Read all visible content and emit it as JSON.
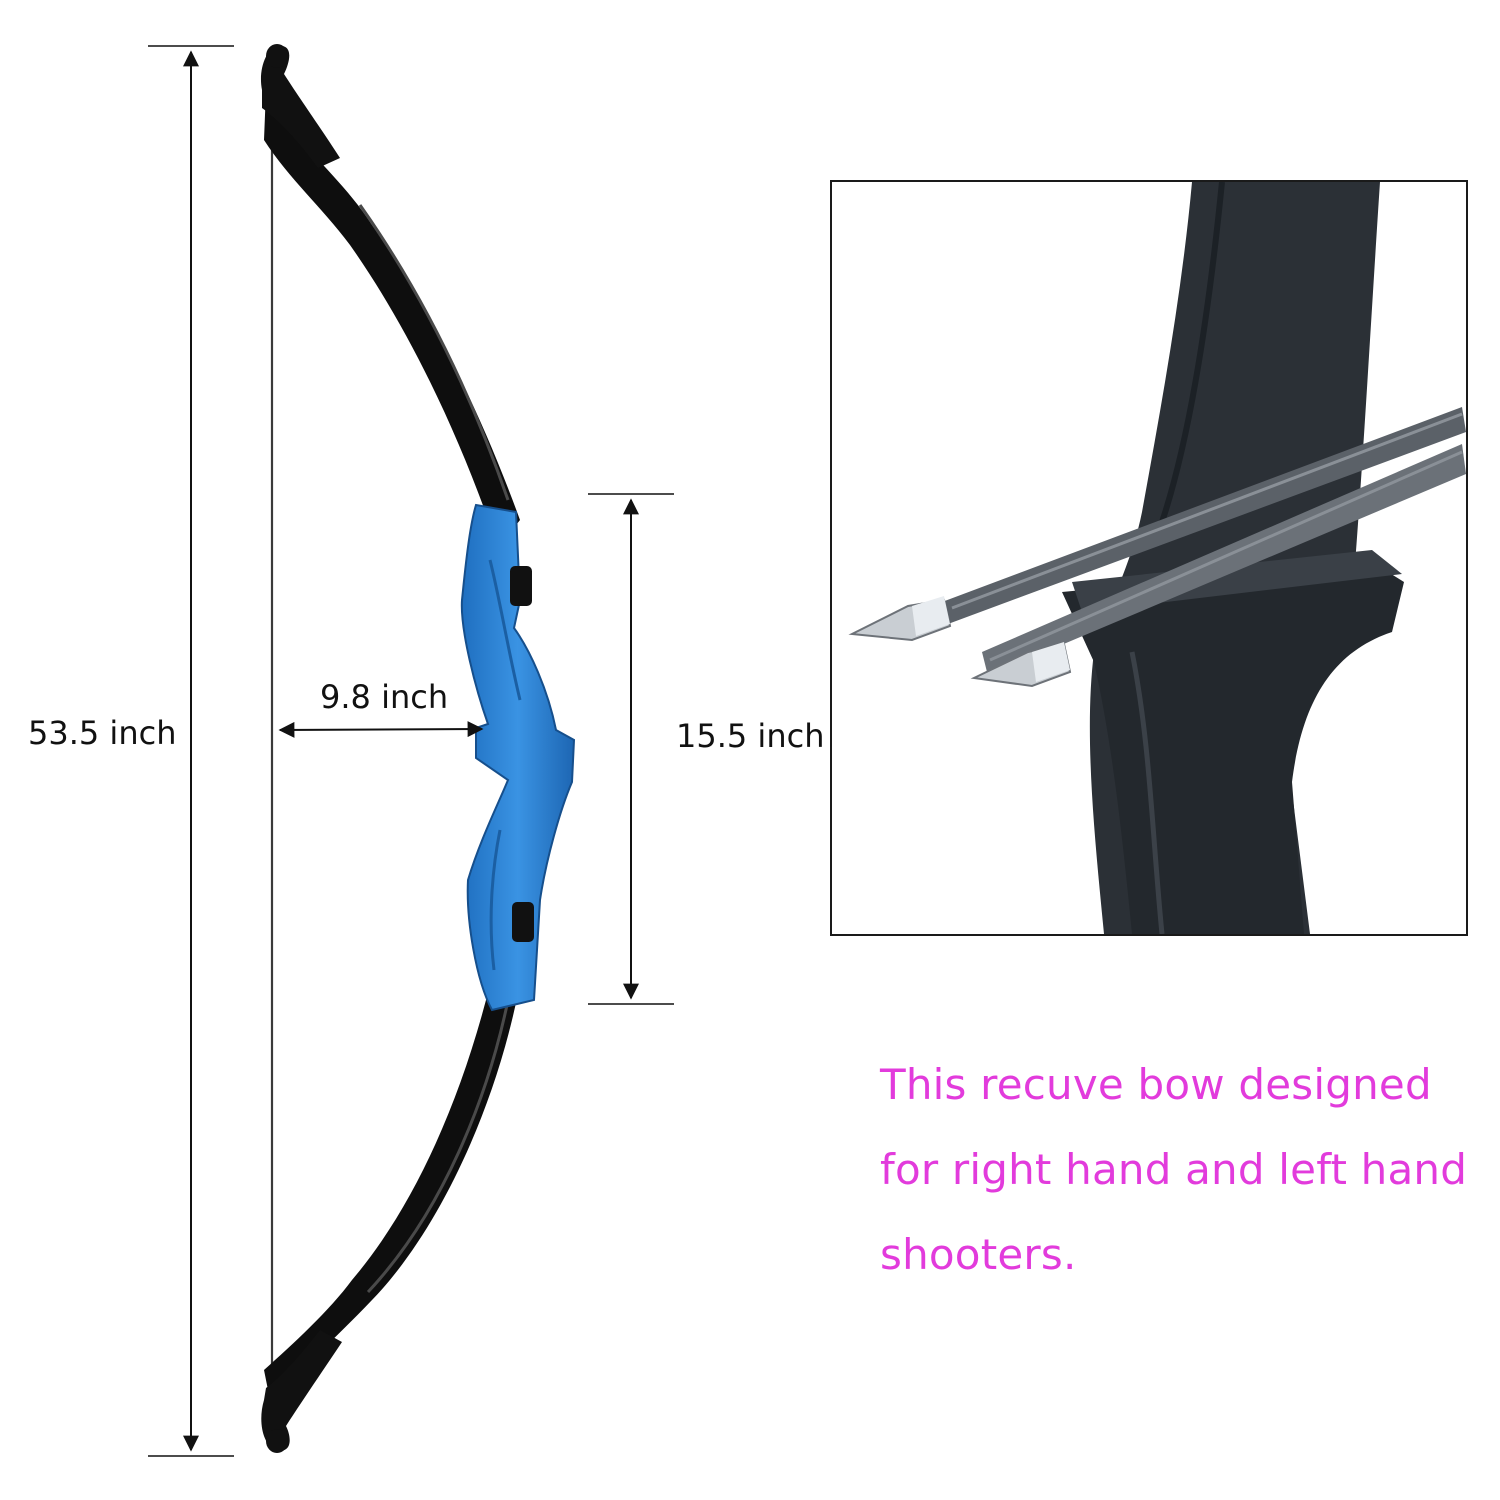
{
  "dimensions": {
    "bow_height": "53.5 inch",
    "riser_length": "15.5 inch",
    "brace_height": "9.8 inch"
  },
  "description": {
    "line1": "This recuve bow designed",
    "line2": "for right hand and left hand",
    "line3": "shooters."
  },
  "colors": {
    "riser": "#2f86d6",
    "limbs": "#111111",
    "description_text": "#e23bdc",
    "dimension_lines": "#111111"
  }
}
